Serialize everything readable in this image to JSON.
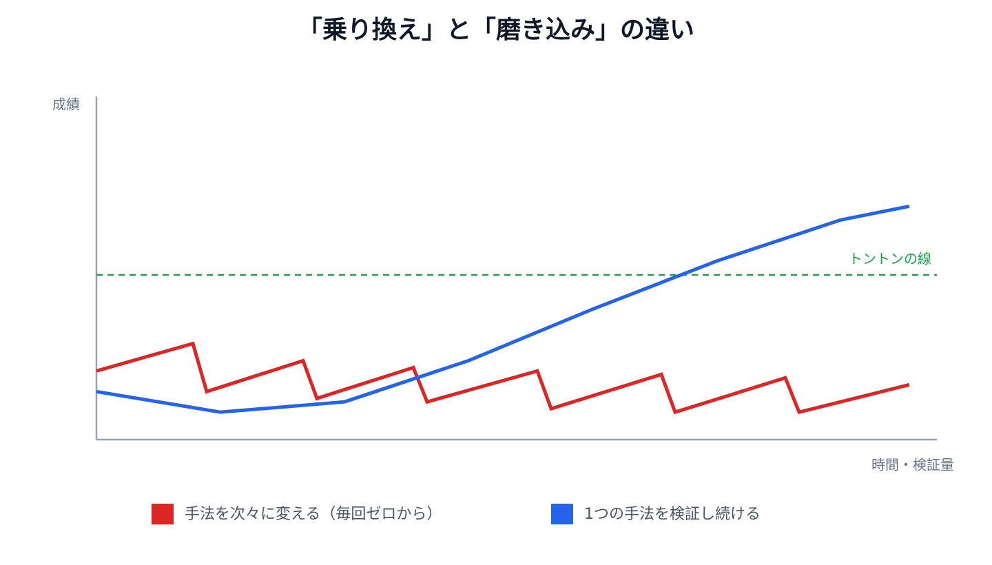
{
  "chart_data": {
    "type": "line",
    "title": "「乗り換え」と「磨き込み」の違い",
    "y_label": "成績",
    "x_label": "時間・検証量",
    "xlim": [
      0,
      122
    ],
    "ylim": [
      0,
      100
    ],
    "series": [
      {
        "name": "手法を次々に変える（毎回ゼロから）",
        "color": "#dc2626",
        "x": [
          0,
          14,
          16,
          30,
          32,
          46,
          48,
          64,
          66,
          82,
          84,
          100,
          102,
          118
        ],
        "values": [
          20,
          28,
          14,
          23,
          12,
          21,
          11,
          20,
          9,
          19,
          8,
          18,
          8,
          16
        ]
      },
      {
        "name": "1つの手法を検証し続ける",
        "color": "#2563eb",
        "x": [
          0,
          18,
          36,
          54,
          72,
          90,
          108,
          118
        ],
        "values": [
          14,
          8,
          11,
          23,
          38,
          52,
          64,
          68
        ]
      }
    ],
    "reference_lines": [
      {
        "value": 48,
        "label": "トントンの線",
        "color": "#16a34a"
      }
    ]
  }
}
